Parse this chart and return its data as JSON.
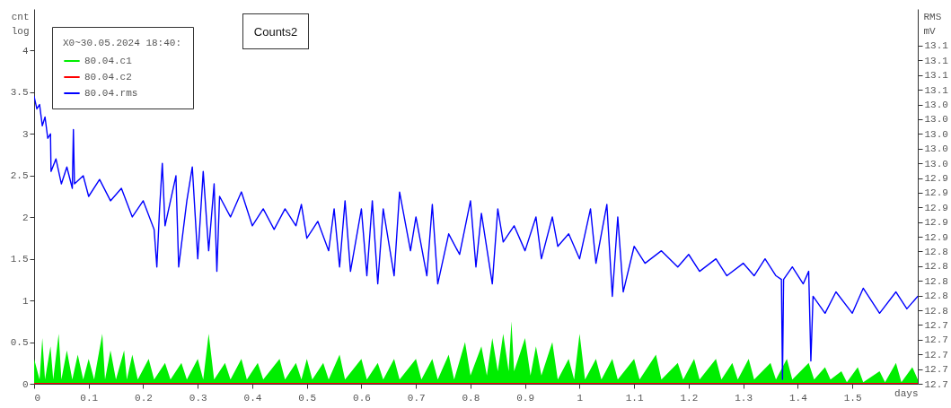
{
  "chart_data": {
    "type": "line",
    "title": "Counts2",
    "xlabel": "days",
    "ylabel": "cnt\nlog",
    "y2label": "RMS\nmV",
    "legend_title": "X0~30.05.2024 18:40:",
    "legend": "top left",
    "grid": false,
    "xlim": [
      0,
      1.62
    ],
    "xticks": [
      0,
      0.1,
      0.2,
      0.3,
      0.4,
      0.5,
      0.6,
      0.7,
      0.8,
      0.9,
      1,
      1.1,
      1.2,
      1.3,
      1.4,
      1.5
    ],
    "ylim": [
      0,
      4.5
    ],
    "yticks": [
      0,
      0.5,
      1,
      1.5,
      2,
      2.5,
      3,
      3.5,
      4
    ],
    "y2lim": [
      12.66,
      13.17
    ],
    "y2ticks": [
      {
        "value": 12.66,
        "label": "12.7"
      },
      {
        "value": 12.68,
        "label": "12.7"
      },
      {
        "value": 12.7,
        "label": "12.7"
      },
      {
        "value": 12.72,
        "label": "12.7"
      },
      {
        "value": 12.74,
        "label": "12.7"
      },
      {
        "value": 12.76,
        "label": "12.8"
      },
      {
        "value": 12.78,
        "label": "12.8"
      },
      {
        "value": 12.8,
        "label": "12.8"
      },
      {
        "value": 12.82,
        "label": "12.8"
      },
      {
        "value": 12.84,
        "label": "12.8"
      },
      {
        "value": 12.86,
        "label": "12.9"
      },
      {
        "value": 12.88,
        "label": "12.9"
      },
      {
        "value": 12.9,
        "label": "12.9"
      },
      {
        "value": 12.92,
        "label": "12.9"
      },
      {
        "value": 12.94,
        "label": "12.9"
      },
      {
        "value": 12.96,
        "label": "13.0"
      },
      {
        "value": 12.98,
        "label": "13.0"
      },
      {
        "value": 13.0,
        "label": "13.0"
      },
      {
        "value": 13.02,
        "label": "13.0"
      },
      {
        "value": 13.04,
        "label": "13.0"
      },
      {
        "value": 13.06,
        "label": "13.1"
      },
      {
        "value": 13.08,
        "label": "13.1"
      },
      {
        "value": 13.1,
        "label": "13.1"
      },
      {
        "value": 13.12,
        "label": "13.1"
      }
    ],
    "series": [
      {
        "name": "80.04.c1",
        "color": "#00ee00",
        "type": "area",
        "x": [
          0,
          0.01,
          0.015,
          0.02,
          0.03,
          0.035,
          0.045,
          0.05,
          0.06,
          0.07,
          0.08,
          0.09,
          0.1,
          0.11,
          0.125,
          0.13,
          0.14,
          0.15,
          0.165,
          0.17,
          0.18,
          0.19,
          0.21,
          0.22,
          0.24,
          0.25,
          0.27,
          0.28,
          0.3,
          0.31,
          0.32,
          0.33,
          0.35,
          0.36,
          0.38,
          0.39,
          0.41,
          0.42,
          0.45,
          0.46,
          0.48,
          0.49,
          0.5,
          0.51,
          0.53,
          0.54,
          0.56,
          0.57,
          0.6,
          0.61,
          0.63,
          0.64,
          0.66,
          0.67,
          0.7,
          0.71,
          0.73,
          0.74,
          0.76,
          0.77,
          0.79,
          0.8,
          0.82,
          0.83,
          0.84,
          0.85,
          0.86,
          0.87,
          0.875,
          0.88,
          0.9,
          0.91,
          0.92,
          0.93,
          0.95,
          0.96,
          0.98,
          0.99,
          1.0,
          1.01,
          1.03,
          1.04,
          1.06,
          1.07,
          1.1,
          1.11,
          1.14,
          1.15,
          1.18,
          1.19,
          1.21,
          1.22,
          1.25,
          1.26,
          1.28,
          1.29,
          1.31,
          1.32,
          1.35,
          1.36,
          1.38,
          1.39,
          1.42,
          1.43,
          1.45,
          1.46,
          1.48,
          1.49,
          1.51,
          1.52,
          1.55,
          1.56,
          1.58,
          1.59,
          1.61,
          1.62
        ],
        "values": [
          0.3,
          0.05,
          0.55,
          0.05,
          0.45,
          0.05,
          0.6,
          0.05,
          0.4,
          0.05,
          0.35,
          0.05,
          0.3,
          0.05,
          0.6,
          0.05,
          0.4,
          0.05,
          0.4,
          0.05,
          0.35,
          0.05,
          0.3,
          0.05,
          0.25,
          0.05,
          0.25,
          0.05,
          0.3,
          0.05,
          0.6,
          0.05,
          0.25,
          0.05,
          0.3,
          0.05,
          0.25,
          0.05,
          0.3,
          0.05,
          0.25,
          0.05,
          0.3,
          0.05,
          0.25,
          0.05,
          0.35,
          0.05,
          0.3,
          0.05,
          0.25,
          0.05,
          0.3,
          0.05,
          0.3,
          0.05,
          0.3,
          0.05,
          0.35,
          0.05,
          0.5,
          0.1,
          0.45,
          0.1,
          0.55,
          0.15,
          0.6,
          0.15,
          0.75,
          0.15,
          0.55,
          0.1,
          0.45,
          0.1,
          0.5,
          0.05,
          0.3,
          0.05,
          0.6,
          0.05,
          0.3,
          0.05,
          0.3,
          0.05,
          0.3,
          0.05,
          0.35,
          0.05,
          0.25,
          0.05,
          0.3,
          0.05,
          0.3,
          0.05,
          0.25,
          0.05,
          0.3,
          0.05,
          0.25,
          0.05,
          0.3,
          0.05,
          0.25,
          0.05,
          0.2,
          0.05,
          0.15,
          0.02,
          0.2,
          0.02,
          0.15,
          0.02,
          0.25,
          0.02,
          0.2,
          0.05
        ]
      },
      {
        "name": "80.04.c2",
        "color": "#ff0000",
        "x": [
          0,
          1.62
        ],
        "values": [
          0,
          0
        ]
      },
      {
        "name": "80.04.rms",
        "color": "#0000ff",
        "axis": "y2",
        "x": [
          0,
          0.005,
          0.01,
          0.015,
          0.02,
          0.025,
          0.03,
          0.031,
          0.04,
          0.05,
          0.06,
          0.07,
          0.072,
          0.074,
          0.09,
          0.1,
          0.12,
          0.14,
          0.16,
          0.18,
          0.2,
          0.22,
          0.225,
          0.23,
          0.235,
          0.24,
          0.26,
          0.265,
          0.28,
          0.29,
          0.3,
          0.31,
          0.32,
          0.33,
          0.335,
          0.34,
          0.36,
          0.38,
          0.4,
          0.42,
          0.44,
          0.46,
          0.48,
          0.49,
          0.5,
          0.52,
          0.54,
          0.55,
          0.56,
          0.57,
          0.58,
          0.6,
          0.61,
          0.62,
          0.63,
          0.64,
          0.66,
          0.67,
          0.69,
          0.7,
          0.72,
          0.73,
          0.74,
          0.76,
          0.78,
          0.8,
          0.81,
          0.82,
          0.84,
          0.85,
          0.86,
          0.88,
          0.9,
          0.92,
          0.93,
          0.95,
          0.96,
          0.98,
          1.0,
          1.02,
          1.03,
          1.05,
          1.06,
          1.07,
          1.08,
          1.1,
          1.12,
          1.15,
          1.18,
          1.2,
          1.22,
          1.25,
          1.27,
          1.3,
          1.32,
          1.34,
          1.36,
          1.37,
          1.372,
          1.374,
          1.39,
          1.41,
          1.42,
          1.424,
          1.428,
          1.45,
          1.47,
          1.5,
          1.52,
          1.55,
          1.58,
          1.6,
          1.62
        ],
        "values": [
          13.051,
          13.034,
          13.04,
          13.011,
          13.023,
          12.994,
          13.0,
          12.949,
          12.966,
          12.932,
          12.955,
          12.926,
          13.006,
          12.932,
          12.943,
          12.915,
          12.938,
          12.909,
          12.926,
          12.887,
          12.909,
          12.87,
          12.819,
          12.898,
          12.96,
          12.875,
          12.943,
          12.819,
          12.909,
          12.955,
          12.83,
          12.949,
          12.841,
          12.932,
          12.813,
          12.915,
          12.887,
          12.921,
          12.875,
          12.898,
          12.87,
          12.898,
          12.875,
          12.904,
          12.858,
          12.881,
          12.841,
          12.898,
          12.819,
          12.909,
          12.813,
          12.898,
          12.807,
          12.909,
          12.796,
          12.898,
          12.807,
          12.921,
          12.841,
          12.887,
          12.807,
          12.904,
          12.796,
          12.864,
          12.836,
          12.909,
          12.819,
          12.892,
          12.796,
          12.898,
          12.853,
          12.875,
          12.841,
          12.887,
          12.83,
          12.887,
          12.847,
          12.864,
          12.83,
          12.898,
          12.824,
          12.904,
          12.779,
          12.887,
          12.785,
          12.847,
          12.824,
          12.841,
          12.819,
          12.836,
          12.813,
          12.83,
          12.807,
          12.824,
          12.807,
          12.83,
          12.807,
          12.802,
          12.666,
          12.802,
          12.819,
          12.796,
          12.813,
          12.691,
          12.779,
          12.756,
          12.785,
          12.756,
          12.79,
          12.756,
          12.785,
          12.762,
          12.779
        ]
      }
    ]
  }
}
